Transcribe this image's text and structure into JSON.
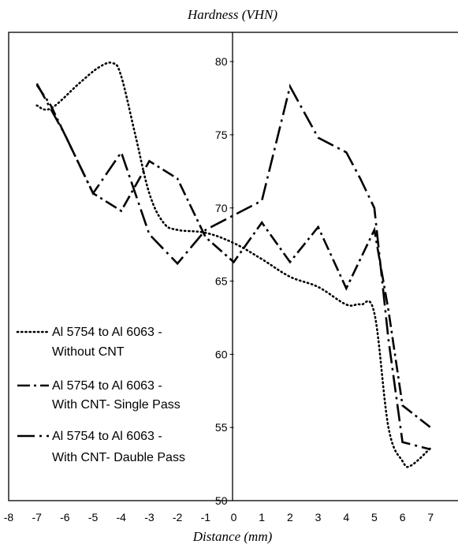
{
  "chart_data": {
    "type": "line",
    "title": "",
    "xlabel": "Distance (mm)",
    "ylabel": "Hardness (VHN)",
    "xlim": [
      -8,
      7
    ],
    "ylim": [
      50,
      82
    ],
    "x_ticks": [
      "-8",
      "-7",
      "-6",
      "-5",
      "-4",
      "-3",
      "-2",
      "-1",
      "0",
      "1",
      "2",
      "3",
      "4",
      "5",
      "6",
      "7"
    ],
    "y_ticks": [
      "50",
      "55",
      "60",
      "65",
      "70",
      "75",
      "80"
    ],
    "grid": false,
    "legend_position": "bottom-left",
    "series": [
      {
        "name": [
          "Al 5754 to Al 6063 -",
          "Without CNT"
        ],
        "style": "dotted",
        "color": "#000000",
        "x": [
          -7,
          -6.5,
          -5.5,
          -4.8,
          -4.3,
          -4,
          -3.5,
          -3,
          -2.5,
          -2,
          -1,
          0,
          1,
          2,
          3,
          4,
          4.5,
          5,
          5.5,
          6,
          6.3,
          7
        ],
        "y": [
          77,
          76.8,
          78.5,
          79.6,
          79.9,
          79,
          75,
          71,
          69,
          68.5,
          68.3,
          67.6,
          66.5,
          65.3,
          64.6,
          63.4,
          63.4,
          62.8,
          55,
          52.7,
          52.4,
          53.6
        ]
      },
      {
        "name": [
          "Al 5754 to Al 6063 -",
          "With CNT-  Single Pass"
        ],
        "style": "dash-dot",
        "color": "#000000",
        "x": [
          -7,
          -6.5,
          -5,
          -4,
          -3,
          -2,
          -1,
          0,
          1,
          2,
          3,
          4,
          5,
          5.5,
          6,
          7
        ],
        "y": [
          78.4,
          77,
          71,
          69.8,
          73.2,
          72,
          68,
          66.3,
          69,
          66.3,
          68.7,
          64.5,
          68.5,
          63,
          56.5,
          55
        ],
        "dash": "16,5,3,5"
      },
      {
        "name": [
          "Al 5754 to Al 6063 -",
          "With CNT- Dauble  Pass"
        ],
        "style": "long-dash-dot",
        "color": "#000000",
        "x": [
          -7,
          -6,
          -5,
          -4,
          -3,
          -2,
          -1,
          0,
          1,
          2,
          3,
          4,
          4.5,
          5,
          5.5,
          6,
          7
        ],
        "y": [
          78.5,
          75,
          71,
          73.8,
          68.2,
          66.2,
          68.5,
          69.5,
          70.5,
          78.3,
          74.8,
          73.8,
          72,
          70,
          61,
          54,
          53.5
        ],
        "dash": "22,6,3,6"
      }
    ]
  }
}
